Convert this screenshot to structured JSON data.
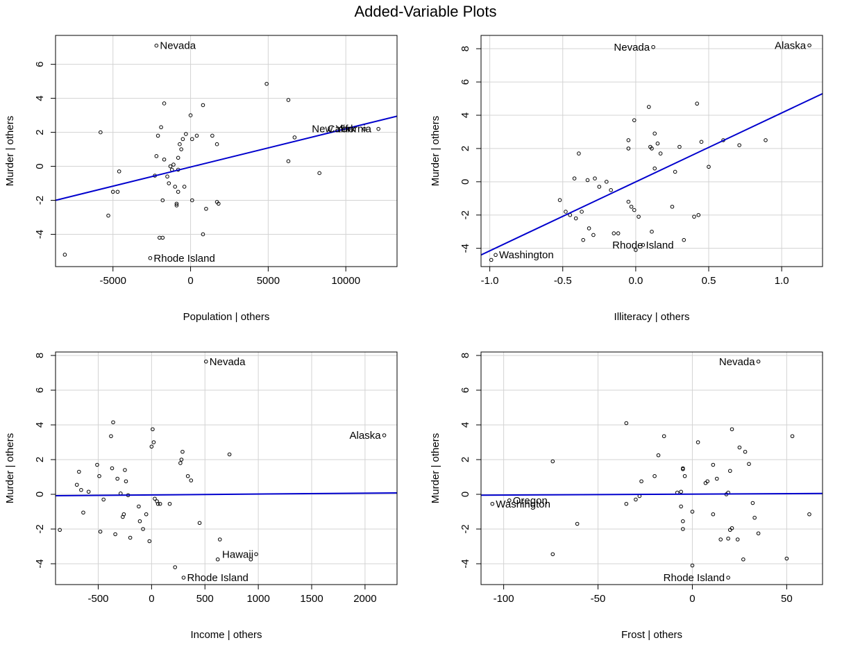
{
  "page_title": "Added-Variable Plots",
  "colors": {
    "fit_line": "#0000cd",
    "grid": "#d3d3d3",
    "points": "#000000"
  },
  "chart_data": [
    {
      "type": "scatter",
      "title": "",
      "xlabel": "Population | others",
      "ylabel": "Murder  | others",
      "xlim": [
        -8700,
        13300
      ],
      "ylim": [
        -5.9,
        7.7
      ],
      "xticks": [
        -5000,
        0,
        5000,
        10000
      ],
      "yticks": [
        -4,
        -2,
        0,
        2,
        4,
        6
      ],
      "grid": true,
      "fit_line": {
        "start": [
          -8700,
          -2.0
        ],
        "end": [
          13300,
          2.95
        ]
      },
      "points": [
        [
          -8100,
          -5.2
        ],
        [
          -5800,
          2.0
        ],
        [
          -5300,
          -2.9
        ],
        [
          -5000,
          -1.5
        ],
        [
          -4700,
          -1.5
        ],
        [
          -4600,
          -0.3
        ],
        [
          -2600,
          -5.4
        ],
        [
          -2300,
          -0.55
        ],
        [
          -2200,
          7.1
        ],
        [
          -2200,
          0.6
        ],
        [
          -2100,
          1.8
        ],
        [
          -2000,
          -4.2
        ],
        [
          -1900,
          2.3
        ],
        [
          -1800,
          -2.0
        ],
        [
          -1800,
          -4.2
        ],
        [
          -1700,
          3.7
        ],
        [
          -1700,
          0.4
        ],
        [
          -1500,
          -0.6
        ],
        [
          -1400,
          -1.0
        ],
        [
          -1300,
          0.0
        ],
        [
          -1200,
          -0.2
        ],
        [
          -1100,
          0.1
        ],
        [
          -1000,
          -1.2
        ],
        [
          -900,
          -2.3
        ],
        [
          -900,
          -2.2
        ],
        [
          -800,
          -1.5
        ],
        [
          -800,
          -0.2
        ],
        [
          -800,
          0.5
        ],
        [
          -700,
          1.3
        ],
        [
          -600,
          1.0
        ],
        [
          -500,
          1.6
        ],
        [
          -400,
          -1.2
        ],
        [
          -300,
          1.9
        ],
        [
          0,
          3.0
        ],
        [
          100,
          -2.0
        ],
        [
          100,
          1.6
        ],
        [
          400,
          1.8
        ],
        [
          800,
          3.6
        ],
        [
          800,
          -4.0
        ],
        [
          1000,
          -2.5
        ],
        [
          1400,
          1.8
        ],
        [
          1700,
          1.3
        ],
        [
          1700,
          -2.1
        ],
        [
          1800,
          -2.2
        ],
        [
          4900,
          4.85
        ],
        [
          6300,
          3.9
        ],
        [
          6300,
          0.3
        ],
        [
          6700,
          1.7
        ],
        [
          8300,
          -0.4
        ],
        [
          9800,
          2.3
        ],
        [
          10200,
          2.2
        ],
        [
          11200,
          2.2
        ],
        [
          12100,
          2.2
        ]
      ],
      "labels": [
        {
          "text": "Nevada",
          "x": -2200,
          "y": 7.1
        },
        {
          "text": "Rhode Island",
          "x": -2600,
          "y": -5.4
        },
        {
          "text": "New York",
          "x": 10200,
          "y": 2.2
        },
        {
          "text": "California",
          "x": 11200,
          "y": 2.2
        }
      ]
    },
    {
      "type": "scatter",
      "title": "",
      "xlabel": "Illiteracy | others",
      "ylabel": "Murder  | others",
      "xlim": [
        -1.06,
        1.28
      ],
      "ylim": [
        -5.1,
        8.8
      ],
      "xticks": [
        -1.0,
        -0.5,
        0.0,
        0.5,
        1.0
      ],
      "tick_labels_x": [
        "-1.0",
        "-0.5",
        "0.0",
        "0.5",
        "1.0"
      ],
      "yticks": [
        -4,
        -2,
        0,
        2,
        4,
        6,
        8
      ],
      "grid": true,
      "fit_line": {
        "start": [
          -1.06,
          -4.4
        ],
        "end": [
          1.28,
          5.3
        ]
      },
      "points": [
        [
          -0.99,
          -4.7
        ],
        [
          -0.96,
          -4.4
        ],
        [
          -0.52,
          -1.1
        ],
        [
          -0.48,
          -1.8
        ],
        [
          -0.45,
          -2.0
        ],
        [
          -0.42,
          0.2
        ],
        [
          -0.41,
          -2.2
        ],
        [
          -0.39,
          1.7
        ],
        [
          -0.37,
          -1.8
        ],
        [
          -0.36,
          -3.5
        ],
        [
          -0.33,
          0.1
        ],
        [
          -0.32,
          -2.8
        ],
        [
          -0.29,
          -3.2
        ],
        [
          -0.28,
          0.2
        ],
        [
          -0.25,
          -0.3
        ],
        [
          -0.2,
          0.0
        ],
        [
          -0.17,
          -0.5
        ],
        [
          -0.15,
          -3.1
        ],
        [
          -0.12,
          -3.1
        ],
        [
          -0.05,
          2.5
        ],
        [
          -0.05,
          2.0
        ],
        [
          -0.05,
          -1.2
        ],
        [
          -0.03,
          -1.5
        ],
        [
          -0.01,
          -1.7
        ],
        [
          -0.01,
          3.7
        ],
        [
          0.02,
          -2.1
        ],
        [
          0.0,
          -4.1
        ],
        [
          0.05,
          -3.8
        ],
        [
          0.09,
          4.5
        ],
        [
          0.1,
          2.1
        ],
        [
          0.11,
          2.0
        ],
        [
          0.11,
          -3.0
        ],
        [
          0.13,
          2.9
        ],
        [
          0.13,
          0.8
        ],
        [
          0.15,
          2.3
        ],
        [
          0.17,
          1.7
        ],
        [
          0.25,
          -1.5
        ],
        [
          0.27,
          0.6
        ],
        [
          0.3,
          2.1
        ],
        [
          0.33,
          -3.5
        ],
        [
          0.4,
          -2.1
        ],
        [
          0.42,
          4.7
        ],
        [
          0.43,
          -2.0
        ],
        [
          0.45,
          2.4
        ],
        [
          0.5,
          0.9
        ],
        [
          0.6,
          2.5
        ],
        [
          0.71,
          2.2
        ],
        [
          0.89,
          2.5
        ],
        [
          0.12,
          8.1
        ],
        [
          1.19,
          8.2
        ]
      ],
      "labels": [
        {
          "text": "Nevada",
          "x": 0.12,
          "y": 8.1
        },
        {
          "text": "Alaska",
          "x": 1.19,
          "y": 8.2
        },
        {
          "text": "Rhode Island",
          "x": 0.05,
          "y": -3.8
        },
        {
          "text": "Washington",
          "x": -0.96,
          "y": -4.4
        }
      ]
    },
    {
      "type": "scatter",
      "title": "",
      "xlabel": "Income | others",
      "ylabel": "Murder  | others",
      "xlim": [
        -900,
        2300
      ],
      "ylim": [
        -5.2,
        8.2
      ],
      "xticks": [
        -500,
        0,
        500,
        1000,
        1500,
        2000
      ],
      "yticks": [
        -4,
        -2,
        0,
        2,
        4,
        6,
        8
      ],
      "grid": true,
      "fit_line": {
        "start": [
          -900,
          -0.08
        ],
        "end": [
          2300,
          0.08
        ]
      },
      "points": [
        [
          -860,
          -2.05
        ],
        [
          -700,
          0.55
        ],
        [
          -680,
          1.3
        ],
        [
          -660,
          0.25
        ],
        [
          -640,
          -1.05
        ],
        [
          -590,
          0.15
        ],
        [
          -510,
          1.7
        ],
        [
          -490,
          1.05
        ],
        [
          -480,
          -2.15
        ],
        [
          -450,
          -0.3
        ],
        [
          -380,
          3.35
        ],
        [
          -370,
          1.5
        ],
        [
          -360,
          4.15
        ],
        [
          -340,
          -2.3
        ],
        [
          -320,
          0.9
        ],
        [
          -290,
          0.05
        ],
        [
          -270,
          -1.3
        ],
        [
          -260,
          -1.15
        ],
        [
          -250,
          1.4
        ],
        [
          -240,
          0.75
        ],
        [
          -220,
          -0.05
        ],
        [
          -200,
          -2.5
        ],
        [
          -120,
          -0.7
        ],
        [
          -110,
          -1.55
        ],
        [
          -80,
          -2.0
        ],
        [
          -50,
          -1.15
        ],
        [
          -20,
          -2.7
        ],
        [
          0,
          2.75
        ],
        [
          10,
          3.75
        ],
        [
          20,
          3.0
        ],
        [
          30,
          -0.25
        ],
        [
          50,
          -0.4
        ],
        [
          60,
          -0.55
        ],
        [
          80,
          -0.55
        ],
        [
          170,
          -0.55
        ],
        [
          220,
          -4.2
        ],
        [
          270,
          1.8
        ],
        [
          280,
          2.0
        ],
        [
          290,
          2.45
        ],
        [
          300,
          -4.8
        ],
        [
          340,
          1.05
        ],
        [
          370,
          0.8
        ],
        [
          450,
          -1.65
        ],
        [
          510,
          7.65
        ],
        [
          620,
          -3.75
        ],
        [
          640,
          -2.6
        ],
        [
          730,
          2.3
        ],
        [
          930,
          -3.75
        ],
        [
          980,
          -3.45
        ],
        [
          2180,
          3.4
        ]
      ],
      "labels": [
        {
          "text": "Nevada",
          "x": 510,
          "y": 7.65
        },
        {
          "text": "Alaska",
          "x": 2180,
          "y": 3.4
        },
        {
          "text": "Hawaii",
          "x": 980,
          "y": -3.45
        },
        {
          "text": "Rhode Island",
          "x": 300,
          "y": -4.8
        }
      ]
    },
    {
      "type": "scatter",
      "title": "",
      "xlabel": "Frost | others",
      "ylabel": "Murder  | others",
      "xlim": [
        -112,
        69
      ],
      "ylim": [
        -5.2,
        8.2
      ],
      "xticks": [
        -100,
        -50,
        0,
        50
      ],
      "yticks": [
        -4,
        -2,
        0,
        2,
        4,
        6,
        8
      ],
      "grid": true,
      "fit_line": {
        "start": [
          -112,
          -0.05
        ],
        "end": [
          69,
          0.05
        ]
      },
      "points": [
        [
          -106,
          -0.55
        ],
        [
          -97,
          -0.35
        ],
        [
          -74,
          1.9
        ],
        [
          -74,
          -3.45
        ],
        [
          -61,
          -1.7
        ],
        [
          -35,
          -0.55
        ],
        [
          -35,
          4.1
        ],
        [
          -30,
          -0.3
        ],
        [
          -28,
          -0.1
        ],
        [
          -27,
          0.75
        ],
        [
          -20,
          1.05
        ],
        [
          -18,
          2.25
        ],
        [
          -15,
          3.35
        ],
        [
          -8,
          0.1
        ],
        [
          -6,
          0.15
        ],
        [
          -6,
          -0.7
        ],
        [
          -5,
          -1.55
        ],
        [
          -5,
          -2.0
        ],
        [
          -5,
          1.5
        ],
        [
          -5,
          1.45
        ],
        [
          -4,
          1.05
        ],
        [
          0,
          -4.1
        ],
        [
          0,
          -1.0
        ],
        [
          3,
          3.0
        ],
        [
          7,
          0.65
        ],
        [
          8,
          0.75
        ],
        [
          11,
          1.7
        ],
        [
          11,
          -1.15
        ],
        [
          13,
          0.9
        ],
        [
          15,
          -2.6
        ],
        [
          18,
          0.0
        ],
        [
          19,
          0.1
        ],
        [
          19,
          -2.55
        ],
        [
          20,
          -2.05
        ],
        [
          20,
          1.35
        ],
        [
          21,
          3.75
        ],
        [
          21,
          -1.95
        ],
        [
          24,
          -2.6
        ],
        [
          25,
          2.7
        ],
        [
          27,
          -3.75
        ],
        [
          28,
          2.45
        ],
        [
          30,
          1.75
        ],
        [
          32,
          -0.5
        ],
        [
          33,
          -1.35
        ],
        [
          35,
          -2.25
        ],
        [
          50,
          -3.7
        ],
        [
          53,
          3.35
        ],
        [
          62,
          -1.15
        ],
        [
          35,
          7.65
        ],
        [
          19,
          -4.8
        ]
      ],
      "labels": [
        {
          "text": "Nevada",
          "x": 35,
          "y": 7.65
        },
        {
          "text": "Oregon",
          "x": -97,
          "y": -0.35
        },
        {
          "text": "Washington",
          "x": -106,
          "y": -0.55
        },
        {
          "text": "Rhode Island",
          "x": 19,
          "y": -4.8
        }
      ]
    }
  ]
}
